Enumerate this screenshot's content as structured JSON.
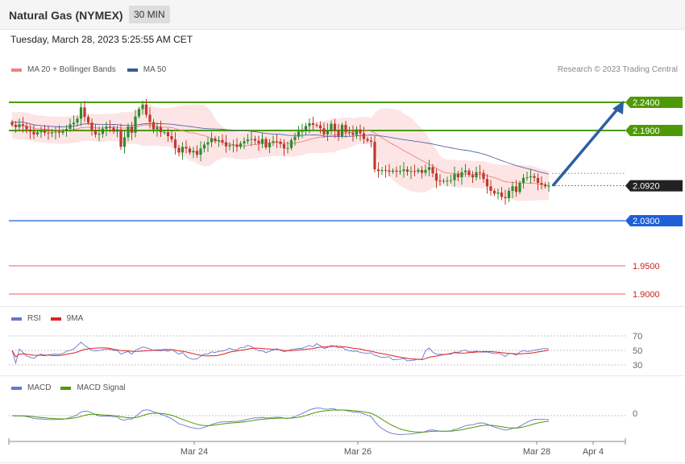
{
  "header": {
    "title": "Natural Gas (NYMEX)",
    "timeframe": "30 MIN"
  },
  "datetime": "Tuesday, March 28, 2023 5:25:55 AM CET",
  "credit": "Research © 2023 Trading Central",
  "colors": {
    "resistance": "#4e9a06",
    "support": "#1f5fd6",
    "lower": "#f08080",
    "up": "#2e8b2e",
    "down": "#c0392b",
    "ma50": "#5566aa",
    "band": "#fde0e0",
    "arrow": "#2d5fa0",
    "current": "#222222"
  },
  "price_chart": {
    "legend": [
      {
        "label": "MA 20 + Bollinger Bands",
        "color": "#f08080"
      },
      {
        "label": "MA 50",
        "color": "#3b5998"
      }
    ],
    "levels": [
      {
        "value": 2.24,
        "label": "2.2400",
        "kind": "resistance"
      },
      {
        "value": 2.19,
        "label": "2.1900",
        "kind": "resistance"
      },
      {
        "value": 2.092,
        "label": "2.0920",
        "kind": "current"
      },
      {
        "value": 2.03,
        "label": "2.0300",
        "kind": "support"
      },
      {
        "value": 1.95,
        "label": "1.9500",
        "kind": "lower"
      },
      {
        "value": 1.9,
        "label": "1.9000",
        "kind": "lower"
      }
    ],
    "forecast": {
      "from": 2.092,
      "to": 2.24
    }
  },
  "rsi_chart": {
    "legend": [
      {
        "label": "RSI",
        "color": "#6677cc"
      },
      {
        "label": "9MA",
        "color": "#dd2222"
      }
    ],
    "ticks": [
      "70",
      "50",
      "30"
    ],
    "range": [
      20,
      80
    ]
  },
  "macd_chart": {
    "legend": [
      {
        "label": "MACD",
        "color": "#6677cc"
      },
      {
        "label": "MACD Signal",
        "color": "#4e9a06"
      }
    ],
    "ticks": [
      "0"
    ]
  },
  "x_axis": {
    "labels": [
      "Mar 24",
      "Mar 26",
      "Mar 28",
      "Apr 4"
    ]
  },
  "chart_data": {
    "type": "candlestick",
    "title": "Natural Gas (NYMEX)",
    "timeframe": "30 MIN",
    "close": [
      2.2,
      2.196,
      2.201,
      2.198,
      2.192,
      2.188,
      2.183,
      2.187,
      2.19,
      2.186,
      2.185,
      2.187,
      2.188,
      2.186,
      2.189,
      2.193,
      2.201,
      2.204,
      2.211,
      2.231,
      2.214,
      2.204,
      2.191,
      2.183,
      2.184,
      2.193,
      2.197,
      2.195,
      2.188,
      2.192,
      2.161,
      2.178,
      2.197,
      2.186,
      2.215,
      2.228,
      2.236,
      2.218,
      2.205,
      2.192,
      2.196,
      2.187,
      2.187,
      2.18,
      2.174,
      2.159,
      2.151,
      2.161,
      2.158,
      2.151,
      2.154,
      2.147,
      2.158,
      2.165,
      2.169,
      2.176,
      2.171,
      2.173,
      2.169,
      2.162,
      2.164,
      2.165,
      2.161,
      2.167,
      2.171,
      2.174,
      2.175,
      2.172,
      2.167,
      2.175,
      2.16,
      2.168,
      2.171,
      2.17,
      2.166,
      2.158,
      2.159,
      2.173,
      2.179,
      2.188,
      2.189,
      2.198,
      2.203,
      2.2,
      2.199,
      2.194,
      2.183,
      2.19,
      2.202,
      2.19,
      2.18,
      2.2,
      2.187,
      2.186,
      2.182,
      2.192,
      2.185,
      2.175,
      2.172,
      2.17,
      2.121,
      2.118,
      2.12,
      2.119,
      2.117,
      2.119,
      2.117,
      2.118,
      2.121,
      2.117,
      2.118,
      2.117,
      2.12,
      2.115,
      2.12,
      2.125,
      2.114,
      2.101,
      2.1,
      2.101,
      2.101,
      2.102,
      2.113,
      2.107,
      2.116,
      2.119,
      2.111,
      2.107,
      2.116,
      2.115,
      2.104,
      2.091,
      2.083,
      2.078,
      2.08,
      2.072,
      2.07,
      2.083,
      2.091,
      2.081,
      2.097,
      2.106,
      2.107,
      2.109,
      2.106,
      2.097,
      2.094,
      2.091,
      2.092
    ],
    "open": [
      2.205,
      2.2,
      2.196,
      2.201,
      2.198,
      2.192,
      2.188,
      2.183,
      2.187,
      2.19,
      2.186,
      2.185,
      2.187,
      2.188,
      2.186,
      2.189,
      2.193,
      2.201,
      2.204,
      2.211,
      2.231,
      2.214,
      2.204,
      2.191,
      2.183,
      2.184,
      2.193,
      2.197,
      2.195,
      2.188,
      2.192,
      2.161,
      2.178,
      2.197,
      2.186,
      2.215,
      2.228,
      2.236,
      2.218,
      2.205,
      2.192,
      2.196,
      2.187,
      2.187,
      2.18,
      2.174,
      2.159,
      2.151,
      2.161,
      2.158,
      2.151,
      2.154,
      2.147,
      2.158,
      2.165,
      2.169,
      2.176,
      2.171,
      2.173,
      2.169,
      2.162,
      2.164,
      2.165,
      2.161,
      2.167,
      2.171,
      2.174,
      2.175,
      2.172,
      2.167,
      2.175,
      2.16,
      2.168,
      2.171,
      2.17,
      2.166,
      2.158,
      2.159,
      2.173,
      2.179,
      2.188,
      2.189,
      2.198,
      2.203,
      2.2,
      2.199,
      2.194,
      2.183,
      2.19,
      2.202,
      2.19,
      2.18,
      2.2,
      2.187,
      2.186,
      2.182,
      2.192,
      2.185,
      2.175,
      2.172,
      2.17,
      2.121,
      2.118,
      2.12,
      2.119,
      2.117,
      2.119,
      2.117,
      2.118,
      2.121,
      2.117,
      2.118,
      2.117,
      2.12,
      2.115,
      2.12,
      2.125,
      2.114,
      2.101,
      2.1,
      2.101,
      2.101,
      2.102,
      2.113,
      2.107,
      2.116,
      2.119,
      2.111,
      2.107,
      2.116,
      2.115,
      2.104,
      2.091,
      2.083,
      2.078,
      2.08,
      2.072,
      2.07,
      2.083,
      2.091,
      2.081,
      2.097,
      2.106,
      2.107,
      2.109,
      2.106,
      2.097,
      2.094,
      2.091
    ]
  }
}
